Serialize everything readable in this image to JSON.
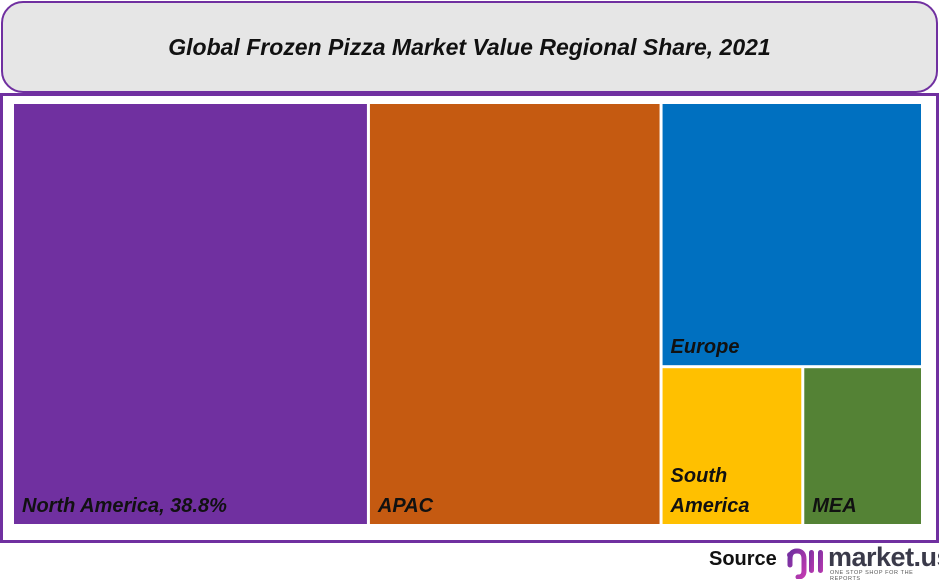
{
  "chart_data": {
    "type": "treemap",
    "title": "Global Frozen Pizza Market Value Regional Share, 2021",
    "unit": "%",
    "items": [
      {
        "name": "North America",
        "label": "North America, 38.8%",
        "value": 38.8,
        "color": "#7030a0"
      },
      {
        "name": "APAC",
        "label": "APAC",
        "value": 31.9,
        "color": "#c55a11"
      },
      {
        "name": "Europe",
        "label": "Europe",
        "value": 17.8,
        "color": "#0070c0"
      },
      {
        "name": "South America",
        "label": "South America",
        "value": 5.8,
        "color": "#ffc000"
      },
      {
        "name": "MEA",
        "label": "MEA",
        "value": 4.9,
        "color": "#548235"
      }
    ]
  },
  "footer": {
    "source_label": "Source",
    "logo_text": "market.us",
    "logo_tagline": "ONE STOP SHOP FOR THE REPORTS"
  },
  "colors": {
    "accent": "#7030a0",
    "title_bg": "#e6e6e6"
  }
}
